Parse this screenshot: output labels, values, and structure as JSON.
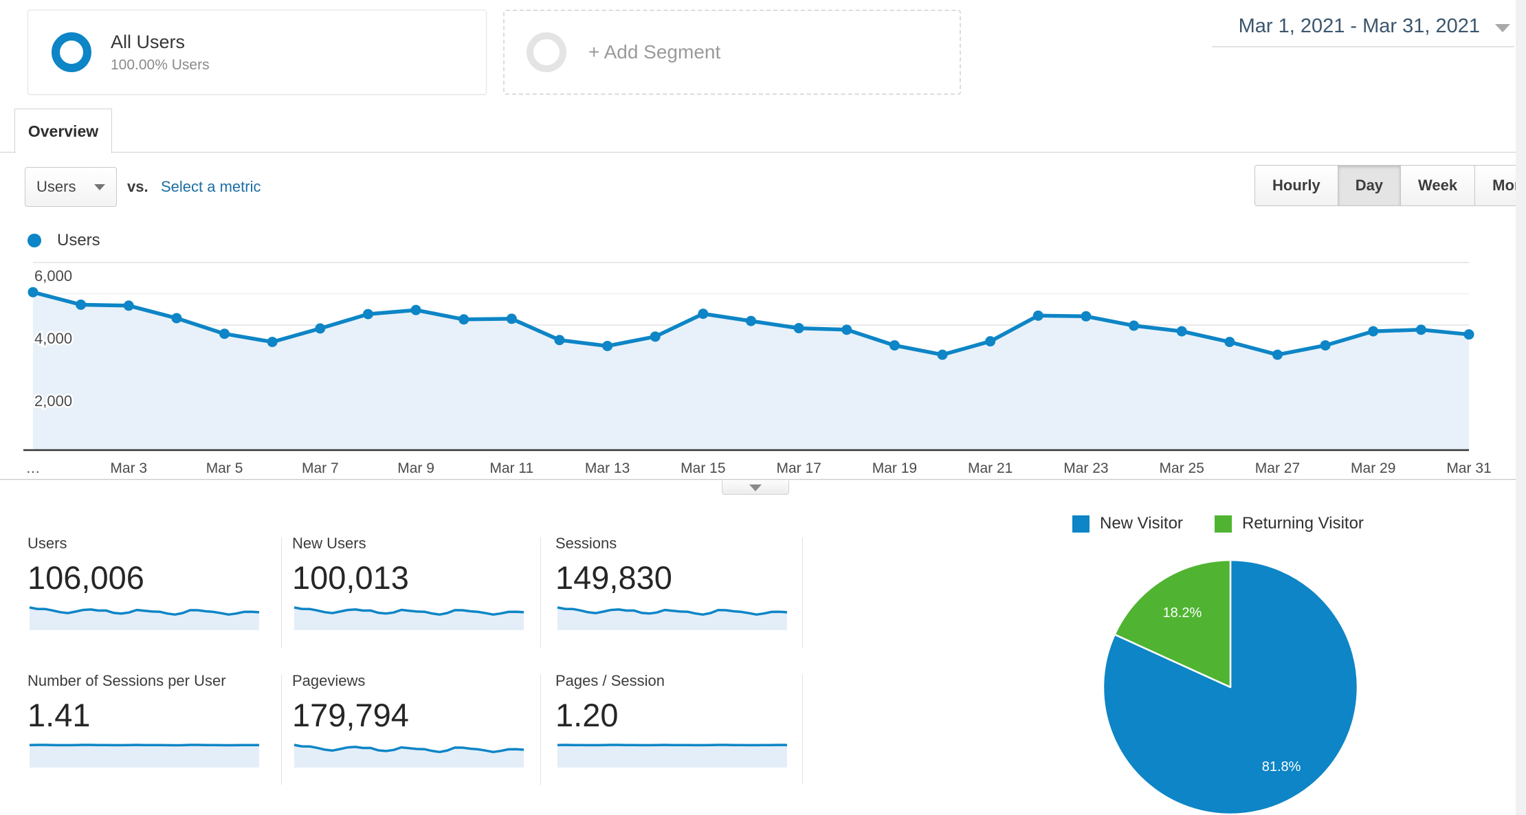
{
  "header": {
    "segment_title": "All Users",
    "segment_subtitle": "100.00% Users",
    "add_segment_label": "+ Add Segment",
    "date_range": "Mar 1, 2021 - Mar 31, 2021"
  },
  "tabs": [
    {
      "label": "Overview",
      "active": true
    }
  ],
  "controls": {
    "metric_dropdown_value": "Users",
    "vs_label": "vs.",
    "select_metric_label": "Select a metric",
    "granularity": [
      {
        "label": "Hourly",
        "active": false
      },
      {
        "label": "Day",
        "active": true
      },
      {
        "label": "Week",
        "active": false
      },
      {
        "label": "Month",
        "active": false
      }
    ]
  },
  "timeseries_legend": {
    "label": "Users",
    "color": "#0d85c6"
  },
  "colors": {
    "blue": "#0d85c6",
    "green": "#50b432",
    "area_fill": "#e8f1f9",
    "spark_fill": "#e4eef8",
    "link": "#1c6ea4",
    "date_text": "#3b566d"
  },
  "icons": {
    "segment_circle": "ring",
    "date_caret": "triangle-down",
    "dropdown_caret": "triangle-down",
    "collapse_caret": "triangle-down"
  },
  "chart_data": [
    {
      "id": "users-by-day",
      "type": "line",
      "title": "Users",
      "x": [
        "Mar 1",
        "Mar 2",
        "Mar 3",
        "Mar 4",
        "Mar 5",
        "Mar 6",
        "Mar 7",
        "Mar 8",
        "Mar 9",
        "Mar 10",
        "Mar 11",
        "Mar 12",
        "Mar 13",
        "Mar 14",
        "Mar 15",
        "Mar 16",
        "Mar 17",
        "Mar 18",
        "Mar 19",
        "Mar 20",
        "Mar 21",
        "Mar 22",
        "Mar 23",
        "Mar 24",
        "Mar 25",
        "Mar 26",
        "Mar 27",
        "Mar 28",
        "Mar 29",
        "Mar 30",
        "Mar 31"
      ],
      "values": [
        5050,
        4650,
        4620,
        4220,
        3720,
        3460,
        3890,
        4350,
        4480,
        4180,
        4200,
        3520,
        3330,
        3630,
        4360,
        4130,
        3900,
        3850,
        3350,
        3050,
        3480,
        4300,
        4280,
        3980,
        3800,
        3460,
        3050,
        3350,
        3800,
        3850,
        3700
      ],
      "ylim": [
        0,
        6000
      ],
      "grid": true,
      "minor_grid_step": 1000,
      "yticks": [
        {
          "value": 2000,
          "label": "2,000"
        },
        {
          "value": 4000,
          "label": "4,000"
        },
        {
          "value": 6000,
          "label": "6,000"
        }
      ],
      "xticks": [
        {
          "label": "…",
          "day": 0
        },
        {
          "label": "Mar 3",
          "day": 2
        },
        {
          "label": "Mar 5",
          "day": 4
        },
        {
          "label": "Mar 7",
          "day": 6
        },
        {
          "label": "Mar 9",
          "day": 8
        },
        {
          "label": "Mar 11",
          "day": 10
        },
        {
          "label": "Mar 13",
          "day": 12
        },
        {
          "label": "Mar 15",
          "day": 14
        },
        {
          "label": "Mar 17",
          "day": 16
        },
        {
          "label": "Mar 19",
          "day": 18
        },
        {
          "label": "Mar 21",
          "day": 20
        },
        {
          "label": "Mar 23",
          "day": 22
        },
        {
          "label": "Mar 25",
          "day": 24
        },
        {
          "label": "Mar 27",
          "day": 26
        },
        {
          "label": "Mar 29",
          "day": 28
        },
        {
          "label": "Mar 31",
          "day": 30
        }
      ],
      "line_color": "#0d85c6",
      "area_color": "#e8f1f9"
    },
    {
      "id": "visitor-type",
      "type": "pie",
      "legend_position": "top",
      "slices": [
        {
          "label": "New Visitor",
          "value_pct": 81.8,
          "display": "81.8%",
          "color": "#0d85c6"
        },
        {
          "label": "Returning Visitor",
          "value_pct": 18.2,
          "display": "18.2%",
          "color": "#50b432"
        }
      ]
    }
  ],
  "metric_cards": [
    {
      "label": "Users",
      "value": "106,006",
      "row": 0,
      "col": 0,
      "spark": [
        5050,
        4650,
        4620,
        4220,
        3720,
        3460,
        3890,
        4350,
        4480,
        4180,
        4200,
        3520,
        3330,
        3630,
        4360,
        4130,
        3900,
        3850,
        3350,
        3050,
        3480,
        4300,
        4280,
        3980,
        3800,
        3460,
        3050,
        3350,
        3800,
        3850,
        3700
      ]
    },
    {
      "label": "New Users",
      "value": "100,013",
      "row": 0,
      "col": 1,
      "spark": [
        4770,
        4390,
        4370,
        3990,
        3520,
        3270,
        3680,
        4110,
        4230,
        3950,
        3970,
        3330,
        3150,
        3430,
        4120,
        3900,
        3690,
        3640,
        3170,
        2880,
        3290,
        4060,
        4040,
        3760,
        3590,
        3270,
        2880,
        3170,
        3590,
        3640,
        3500
      ]
    },
    {
      "label": "Sessions",
      "value": "149,830",
      "row": 0,
      "col": 2,
      "spark": [
        7170,
        6600,
        6560,
        5990,
        5280,
        4910,
        5520,
        6180,
        6360,
        5940,
        5960,
        5000,
        4730,
        5150,
        6190,
        5860,
        5540,
        5470,
        4760,
        4330,
        4940,
        6110,
        6080,
        5650,
        5400,
        4910,
        4330,
        4760,
        5400,
        5470,
        5250
      ]
    },
    {
      "label": "Number of Sessions per User",
      "value": "1.41",
      "row": 1,
      "col": 0,
      "spark": [
        1.41,
        1.42,
        1.42,
        1.41,
        1.4,
        1.4,
        1.41,
        1.42,
        1.42,
        1.41,
        1.41,
        1.4,
        1.4,
        1.41,
        1.42,
        1.41,
        1.41,
        1.41,
        1.4,
        1.39,
        1.4,
        1.42,
        1.42,
        1.41,
        1.41,
        1.4,
        1.39,
        1.4,
        1.41,
        1.41,
        1.41
      ]
    },
    {
      "label": "Pageviews",
      "value": "179,794",
      "row": 1,
      "col": 1,
      "spark": [
        8590,
        7910,
        7850,
        7170,
        6320,
        5880,
        6610,
        7400,
        7620,
        7110,
        7140,
        5980,
        5660,
        6170,
        7410,
        7020,
        6630,
        6550,
        5700,
        5190,
        5920,
        7310,
        7280,
        6770,
        6460,
        5880,
        5190,
        5700,
        6460,
        6550,
        6290
      ]
    },
    {
      "label": "Pages / Session",
      "value": "1.20",
      "row": 1,
      "col": 2,
      "spark": [
        1.2,
        1.21,
        1.2,
        1.2,
        1.19,
        1.19,
        1.2,
        1.21,
        1.21,
        1.2,
        1.2,
        1.19,
        1.19,
        1.2,
        1.21,
        1.2,
        1.2,
        1.2,
        1.19,
        1.19,
        1.2,
        1.21,
        1.21,
        1.2,
        1.2,
        1.19,
        1.19,
        1.2,
        1.2,
        1.21,
        1.2
      ]
    }
  ]
}
